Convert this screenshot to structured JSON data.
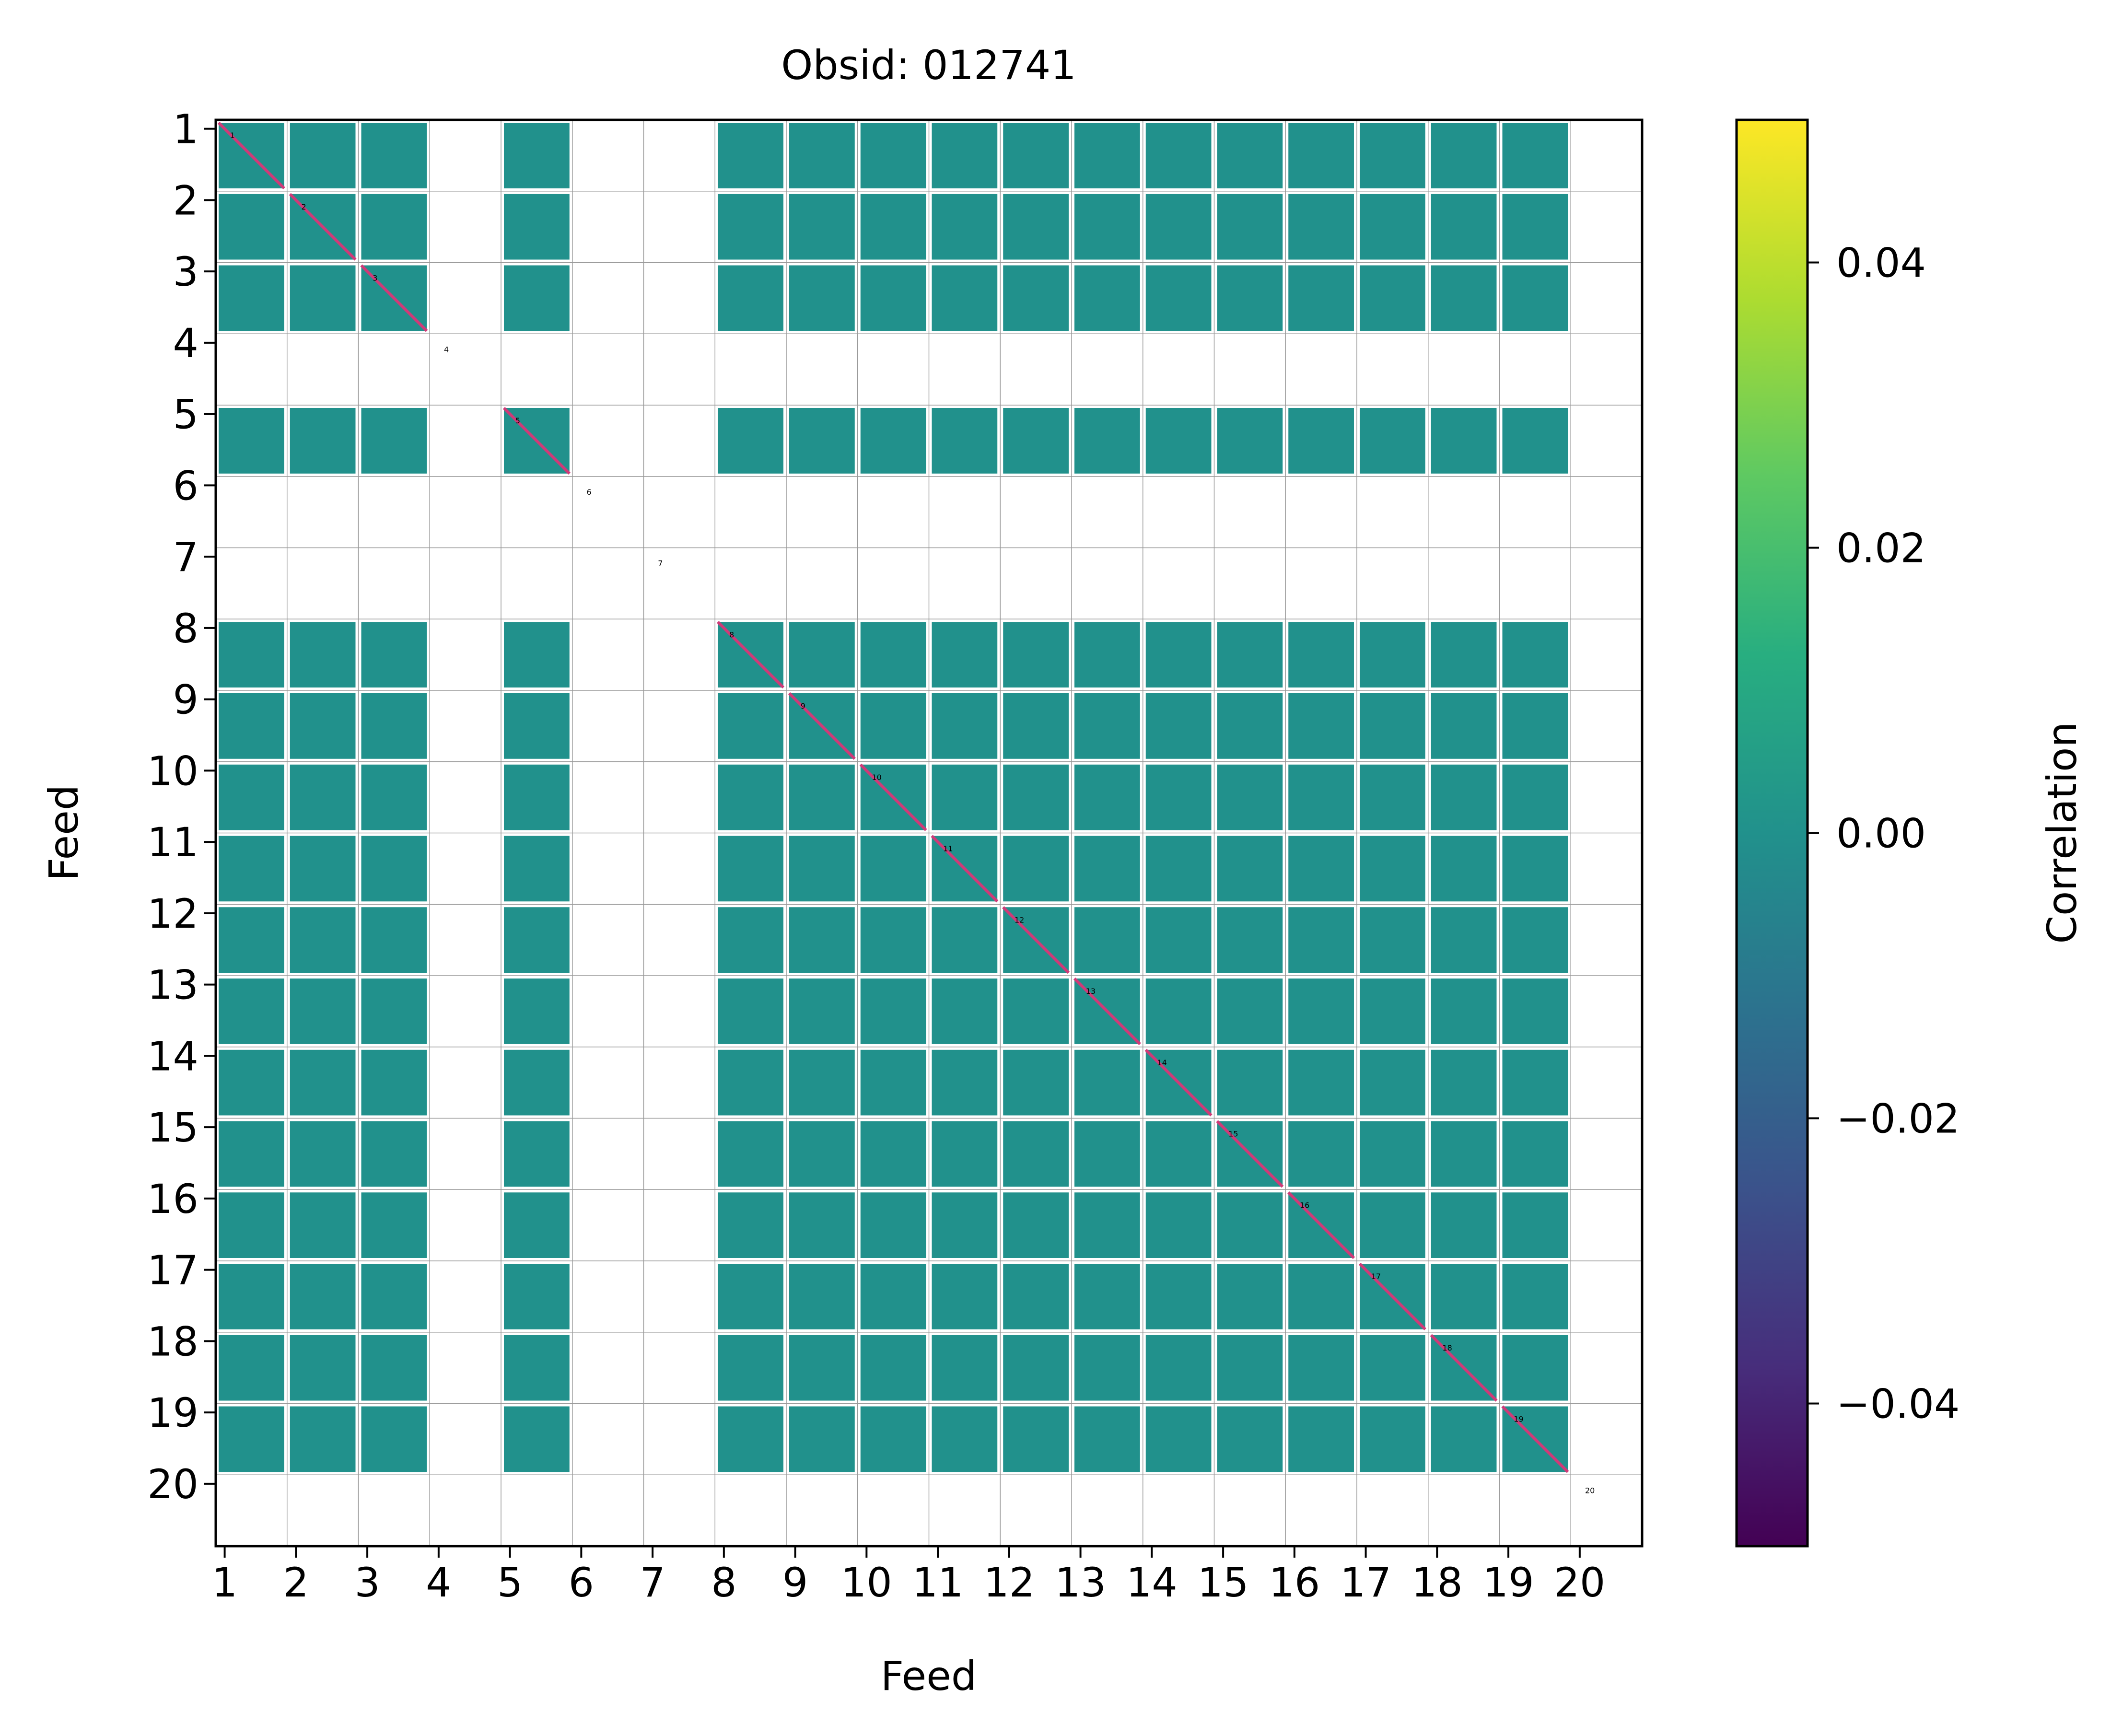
{
  "chart_data": {
    "type": "heatmap",
    "title": "Obsid: 012741",
    "xlabel": "Feed",
    "ylabel": "Feed",
    "x_ticks": [
      "1",
      "2",
      "3",
      "4",
      "5",
      "6",
      "7",
      "8",
      "9",
      "10",
      "11",
      "12",
      "13",
      "14",
      "15",
      "16",
      "17",
      "18",
      "19",
      "20"
    ],
    "y_ticks": [
      "1",
      "2",
      "3",
      "4",
      "5",
      "6",
      "7",
      "8",
      "9",
      "10",
      "11",
      "12",
      "13",
      "14",
      "15",
      "16",
      "17",
      "18",
      "19",
      "20"
    ],
    "colorbar": {
      "label": "Correlation",
      "range": [
        -0.05,
        0.05
      ],
      "ticks": [
        -0.04,
        -0.02,
        0.0,
        0.02,
        0.04
      ],
      "tick_labels": [
        "−0.04",
        "−0.02",
        "0.00",
        "0.02",
        "0.04"
      ],
      "colormap": "viridis"
    },
    "feeds": [
      1,
      2,
      3,
      4,
      5,
      6,
      7,
      8,
      9,
      10,
      11,
      12,
      13,
      14,
      15,
      16,
      17,
      18,
      19,
      20
    ],
    "blocks_per_feed": 4,
    "masked_feeds": [
      4,
      6,
      7,
      20
    ],
    "fill_value": 0.0,
    "fill_color": "#21918c",
    "diagonal_color": "#d03a78",
    "feed_labels": [
      "1",
      "2",
      "3",
      "4",
      "5",
      "6",
      "7",
      "8",
      "9",
      "10",
      "11",
      "12",
      "13",
      "14",
      "15",
      "16",
      "17",
      "18",
      "19",
      "20"
    ]
  }
}
